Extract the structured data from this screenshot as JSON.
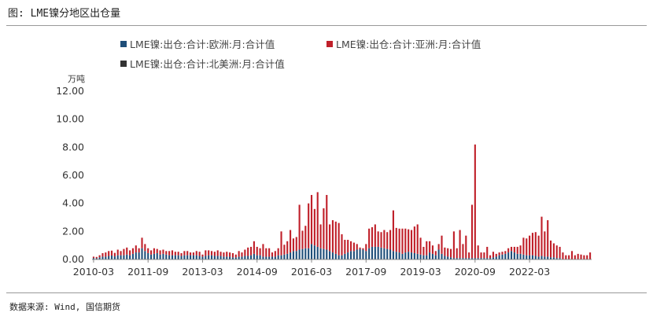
{
  "figure_title": "图: LME镍分地区出仓量",
  "source_note": "数据来源: Wind, 国信期货",
  "chart_data": {
    "type": "bar",
    "stacked": true,
    "unit": "万吨",
    "ylim": [
      0,
      12
    ],
    "y_ticks": [
      "0.00",
      "2.00",
      "4.00",
      "6.00",
      "8.00",
      "10.00",
      "12.00"
    ],
    "x_tick_labels": [
      "2010-03",
      "2011-09",
      "2013-03",
      "2014-09",
      "2016-03",
      "2017-09",
      "2019-03",
      "2020-09",
      "2022-03"
    ],
    "x_tick_months": [
      0,
      18,
      36,
      54,
      72,
      90,
      108,
      126,
      144
    ],
    "start_month": "2010-03",
    "grid": false,
    "legend_position": "top",
    "series": [
      {
        "name": "LME镍:出仓:合计:欧洲:月:合计值",
        "color": "#1f4e79",
        "values": [
          0.1,
          0.08,
          0.15,
          0.2,
          0.2,
          0.25,
          0.28,
          0.22,
          0.3,
          0.3,
          0.3,
          0.35,
          0.3,
          0.4,
          0.5,
          0.5,
          0.8,
          0.6,
          0.45,
          0.35,
          0.4,
          0.45,
          0.35,
          0.4,
          0.35,
          0.3,
          0.3,
          0.3,
          0.3,
          0.25,
          0.3,
          0.3,
          0.3,
          0.3,
          0.3,
          0.25,
          0.2,
          0.25,
          0.3,
          0.3,
          0.25,
          0.25,
          0.25,
          0.2,
          0.2,
          0.2,
          0.15,
          0.15,
          0.2,
          0.2,
          0.25,
          0.25,
          0.3,
          0.4,
          0.3,
          0.3,
          0.2,
          0.2,
          0.2,
          0.2,
          0.2,
          0.3,
          0.3,
          0.35,
          0.4,
          0.5,
          0.6,
          0.6,
          0.7,
          0.75,
          0.8,
          0.8,
          1.1,
          1.0,
          0.9,
          0.8,
          0.75,
          0.7,
          0.6,
          0.5,
          0.4,
          0.3,
          0.3,
          0.4,
          0.5,
          0.6,
          0.6,
          0.7,
          0.75,
          0.7,
          0.6,
          0.8,
          0.9,
          0.9,
          0.9,
          0.85,
          0.8,
          0.75,
          0.7,
          0.6,
          0.55,
          0.5,
          0.4,
          0.5,
          0.55,
          0.5,
          0.45,
          0.4,
          0.35,
          0.3,
          0.3,
          0.5,
          0.4,
          0.3,
          0.7,
          0.4,
          0.25,
          0.2,
          0.15,
          0.1,
          0.1,
          0.1,
          0.1,
          0.1,
          0.1,
          0.1,
          0.1,
          0.1,
          0.1,
          0.1,
          0.1,
          0.1,
          0.15,
          0.2,
          0.3,
          0.35,
          0.4,
          0.5,
          0.6,
          0.5,
          0.4,
          0.4,
          0.35,
          0.3,
          0.3,
          0.3,
          0.25,
          0.2,
          0.25,
          0.2,
          0.2,
          0.15,
          0.15,
          0.1,
          0.1
        ]
      },
      {
        "name": "LME镍:出仓:合计:亚洲:月:合计值",
        "color": "#c0202a",
        "values": [
          0.1,
          0.1,
          0.15,
          0.25,
          0.3,
          0.35,
          0.35,
          0.25,
          0.4,
          0.3,
          0.45,
          0.5,
          0.35,
          0.4,
          0.5,
          0.3,
          0.75,
          0.5,
          0.35,
          0.3,
          0.4,
          0.3,
          0.3,
          0.3,
          0.25,
          0.3,
          0.35,
          0.25,
          0.25,
          0.2,
          0.3,
          0.3,
          0.2,
          0.2,
          0.3,
          0.3,
          0.15,
          0.4,
          0.35,
          0.3,
          0.3,
          0.4,
          0.3,
          0.3,
          0.35,
          0.3,
          0.3,
          0.2,
          0.4,
          0.3,
          0.45,
          0.6,
          0.6,
          0.9,
          0.6,
          0.5,
          0.9,
          0.6,
          0.6,
          0.3,
          0.4,
          0.5,
          1.7,
          0.7,
          0.9,
          1.6,
          0.9,
          1.0,
          3.2,
          1.3,
          1.6,
          3.2,
          3.5,
          2.6,
          3.9,
          1.7,
          2.9,
          3.9,
          1.9,
          2.3,
          2.3,
          2.3,
          1.5,
          1.0,
          0.9,
          0.7,
          0.6,
          0.4,
          0.1,
          0.1,
          0.5,
          1.4,
          1.4,
          1.6,
          1.1,
          1.1,
          1.3,
          1.2,
          1.4,
          2.9,
          1.7,
          1.7,
          1.8,
          1.7,
          1.6,
          1.6,
          1.9,
          2.1,
          1.2,
          0.6,
          1.0,
          0.8,
          0.6,
          0.3,
          0.4,
          1.3,
          0.6,
          0.6,
          0.6,
          1.9,
          0.7,
          2.0,
          1.0,
          1.6,
          0.4,
          3.8,
          8.1,
          0.9,
          0.4,
          0.4,
          0.8,
          0.2,
          0.4,
          0.2,
          0.2,
          0.2,
          0.2,
          0.3,
          0.3,
          0.4,
          0.5,
          0.6,
          1.2,
          1.2,
          1.4,
          1.6,
          1.7,
          1.5,
          2.8,
          1.8,
          2.6,
          1.2,
          1.0,
          0.9,
          0.8,
          0.5,
          0.3,
          0.3,
          0.6,
          0.3,
          0.4,
          0.35,
          0.3,
          0.3,
          0.5
        ]
      },
      {
        "name": "LME镍:出仓:合计:北美洲:月:合计值",
        "color": "#333333",
        "values": []
      }
    ]
  }
}
